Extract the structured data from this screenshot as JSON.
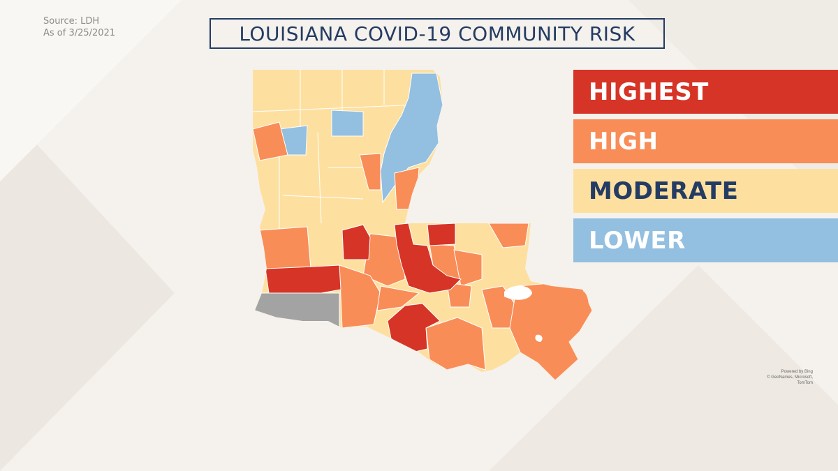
{
  "source": {
    "line1": "Source: LDH",
    "line2": "As of 3/25/2021"
  },
  "title": "LOUISIANA COVID-19 COMMUNITY RISK",
  "legend": [
    {
      "label": "HIGHEST",
      "color": "#d63426",
      "text_color": "#ffffff"
    },
    {
      "label": "HIGH",
      "color": "#f98d57",
      "text_color": "#ffffff"
    },
    {
      "label": "MODERATE",
      "color": "#fde0a0",
      "text_color": "#243b63"
    },
    {
      "label": "LOWER",
      "color": "#93bfe0",
      "text_color": "#ffffff"
    }
  ],
  "map": {
    "region": "Louisiana parishes",
    "colors": {
      "highest": "#d63426",
      "high": "#f98d57",
      "moderate": "#fde0a0",
      "lower": "#93bfe0",
      "no_data": "#a3a3a3",
      "border": "#ffffff"
    }
  },
  "credit": {
    "line1": "Powered by Bing",
    "line2": "© GeoNames, Microsoft, TomTom"
  }
}
